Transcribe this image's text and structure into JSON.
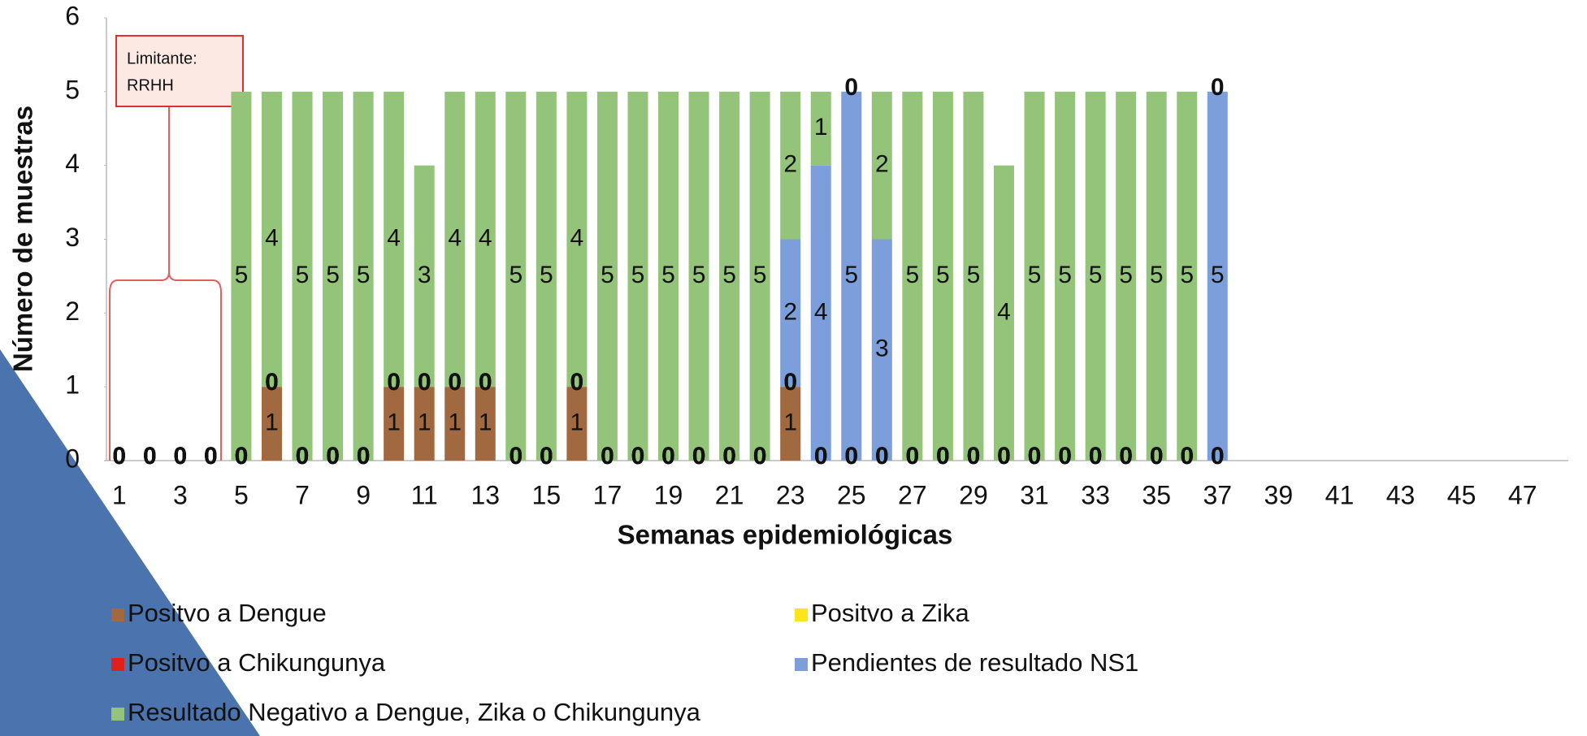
{
  "chart_data": {
    "type": "bar",
    "stacked": true,
    "y_label": "Número de muestras",
    "x_label": "Semanas epidemiológicas",
    "annotation": [
      "Limitante:",
      "RRHH"
    ],
    "categories": [
      1,
      null,
      3,
      null,
      5,
      null,
      7,
      null,
      9,
      null,
      11,
      null,
      13,
      null,
      15,
      null,
      17,
      null,
      19,
      null,
      21,
      null,
      23,
      null,
      25,
      null,
      27,
      null,
      29,
      null,
      31,
      null,
      33,
      null,
      35,
      null,
      37,
      null,
      39,
      null,
      41,
      null,
      43,
      null,
      45,
      null,
      47,
      null
    ],
    "ylim": [
      0,
      6
    ],
    "yticks": [
      0,
      1,
      2,
      3,
      4,
      5,
      6
    ],
    "series": [
      {
        "name": "Positvo a Dengue",
        "color": "#a0693f",
        "values": [
          0,
          0,
          0,
          0,
          0,
          1,
          0,
          0,
          0,
          1,
          1,
          1,
          1,
          0,
          0,
          1,
          0,
          0,
          0,
          0,
          0,
          0,
          1,
          0,
          0,
          0,
          0,
          0,
          0,
          0,
          0,
          0,
          0,
          0,
          0,
          0,
          0,
          null,
          null,
          null,
          null,
          null,
          null,
          null,
          null,
          null,
          null,
          null
        ]
      },
      {
        "name": "Positvo a Chikungunya",
        "color": "#e0201b",
        "values": [
          0,
          0,
          0,
          0,
          0,
          0,
          0,
          0,
          0,
          0,
          0,
          0,
          0,
          0,
          0,
          0,
          0,
          0,
          0,
          0,
          0,
          0,
          0,
          0,
          0,
          0,
          0,
          0,
          0,
          0,
          0,
          0,
          0,
          0,
          0,
          0,
          0,
          null,
          null,
          null,
          null,
          null,
          null,
          null,
          null,
          null,
          null,
          null
        ]
      },
      {
        "name": "Positvo a  Zika",
        "color": "#ffe51a",
        "values": [
          0,
          0,
          0,
          0,
          0,
          0,
          0,
          0,
          0,
          0,
          0,
          0,
          0,
          0,
          0,
          0,
          0,
          0,
          0,
          0,
          0,
          0,
          0,
          0,
          0,
          0,
          0,
          0,
          0,
          0,
          0,
          0,
          0,
          0,
          0,
          0,
          0,
          null,
          null,
          null,
          null,
          null,
          null,
          null,
          null,
          null,
          null,
          null
        ]
      },
      {
        "name": "Pendientes de resultado NS1",
        "color": "#7c9fdb",
        "values": [
          0,
          0,
          0,
          0,
          0,
          0,
          0,
          0,
          0,
          0,
          0,
          0,
          0,
          0,
          0,
          0,
          0,
          0,
          0,
          0,
          0,
          0,
          2,
          4,
          5,
          3,
          0,
          0,
          0,
          0,
          0,
          0,
          0,
          0,
          0,
          0,
          5,
          null,
          null,
          null,
          null,
          null,
          null,
          null,
          null,
          null,
          null,
          null
        ]
      },
      {
        "name": "Resultado Negativo a Dengue, Zika o Chikungunya",
        "color": "#94c47a",
        "values": [
          0,
          0,
          0,
          0,
          5,
          4,
          5,
          5,
          5,
          4,
          3,
          4,
          4,
          5,
          5,
          4,
          5,
          5,
          5,
          5,
          5,
          5,
          2,
          1,
          0,
          2,
          5,
          5,
          5,
          4,
          5,
          5,
          5,
          5,
          5,
          5,
          0,
          null,
          null,
          null,
          null,
          null,
          null,
          null,
          null,
          null,
          null,
          null
        ]
      }
    ]
  }
}
